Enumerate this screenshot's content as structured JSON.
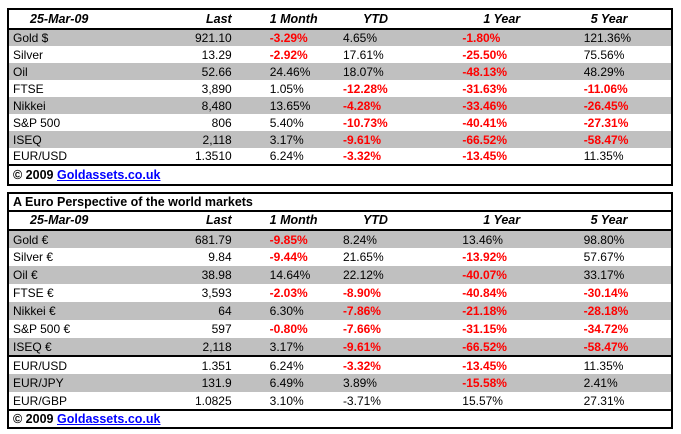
{
  "colors": {
    "negative_text": "#FF0000",
    "positive_text": "#000000",
    "shaded_row": "#C0C0C0",
    "table_border": "#000000",
    "link": "#0000FF"
  },
  "usd_table": {
    "header": [
      "25-Mar-09",
      "Last",
      "1 Month",
      "YTD",
      "1 Year",
      "5 Year"
    ],
    "rows": [
      {
        "label": "Gold $",
        "values": [
          "921.10",
          "-3.29%",
          "4.65%",
          "-1.80%",
          "121.36%"
        ],
        "negative_flags": [
          false,
          true,
          false,
          true,
          false
        ]
      },
      {
        "label": "Silver",
        "values": [
          "13.29",
          "-2.92%",
          "17.61%",
          "-25.50%",
          "75.56%"
        ],
        "negative_flags": [
          false,
          true,
          false,
          true,
          false
        ]
      },
      {
        "label": "Oil",
        "values": [
          "52.66",
          "24.46%",
          "18.07%",
          "-48.13%",
          "48.29%"
        ],
        "negative_flags": [
          false,
          false,
          false,
          true,
          false
        ]
      },
      {
        "label": "FTSE",
        "values": [
          "3,890",
          "1.05%",
          "-12.28%",
          "-31.63%",
          "-11.06%"
        ],
        "negative_flags": [
          false,
          false,
          true,
          true,
          true
        ]
      },
      {
        "label": "Nikkei",
        "values": [
          "8,480",
          "13.65%",
          "-4.28%",
          "-33.46%",
          "-26.45%"
        ],
        "negative_flags": [
          false,
          false,
          true,
          true,
          true
        ]
      },
      {
        "label": "S&P 500",
        "values": [
          "806",
          "5.40%",
          "-10.73%",
          "-40.41%",
          "-27.31%"
        ],
        "negative_flags": [
          false,
          false,
          true,
          true,
          true
        ]
      },
      {
        "label": "ISEQ",
        "values": [
          "2,118",
          "3.17%",
          "-9.61%",
          "-66.52%",
          "-58.47%"
        ],
        "negative_flags": [
          false,
          false,
          true,
          true,
          true
        ]
      },
      {
        "label": "EUR/USD",
        "values": [
          "1.3510",
          "6.24%",
          "-3.32%",
          "-13.45%",
          "11.35%"
        ],
        "negative_flags": [
          false,
          false,
          true,
          true,
          false
        ]
      }
    ],
    "footer": {
      "copyright": "© 2009",
      "link_text": "Goldassets.co.uk"
    }
  },
  "euro_table": {
    "title": "A Euro Perspective of the world markets",
    "header": [
      "25-Mar-09",
      "Last",
      "1 Month",
      "YTD",
      "1 Year",
      "5 Year"
    ],
    "rows": [
      {
        "label": "Gold €",
        "values": [
          "681.79",
          "-9.85%",
          "8.24%",
          "13.46%",
          "98.80%"
        ],
        "negative_flags": [
          false,
          true,
          false,
          false,
          false
        ]
      },
      {
        "label": "Silver €",
        "values": [
          "9.84",
          "-9.44%",
          "21.65%",
          "-13.92%",
          "57.67%"
        ],
        "negative_flags": [
          false,
          true,
          false,
          true,
          false
        ]
      },
      {
        "label": "Oil €",
        "values": [
          "38.98",
          "14.64%",
          "22.12%",
          "-40.07%",
          "33.17%"
        ],
        "negative_flags": [
          false,
          false,
          false,
          true,
          false
        ]
      },
      {
        "label": "FTSE €",
        "values": [
          "3,593",
          "-2.03%",
          "-8.90%",
          "-40.84%",
          "-30.14%"
        ],
        "negative_flags": [
          false,
          true,
          true,
          true,
          true
        ]
      },
      {
        "label": "Nikkei €",
        "values": [
          "64",
          "6.30%",
          "-7.86%",
          "-21.18%",
          "-28.18%"
        ],
        "negative_flags": [
          false,
          false,
          true,
          true,
          true
        ]
      },
      {
        "label": "S&P 500 €",
        "values": [
          "597",
          "-0.80%",
          "-7.66%",
          "-31.15%",
          "-34.72%"
        ],
        "negative_flags": [
          false,
          true,
          true,
          true,
          true
        ]
      },
      {
        "label": "ISEQ €",
        "values": [
          "2,118",
          "3.17%",
          "-9.61%",
          "-66.52%",
          "-58.47%"
        ],
        "negative_flags": [
          false,
          false,
          true,
          true,
          true
        ]
      },
      {
        "label": "EUR/USD",
        "values": [
          "1.351",
          "6.24%",
          "-3.32%",
          "-13.45%",
          "11.35%"
        ],
        "negative_flags": [
          false,
          false,
          true,
          true,
          false
        ],
        "separator_above": true
      },
      {
        "label": "EUR/JPY",
        "values": [
          "131.9",
          "6.49%",
          "3.89%",
          "-15.58%",
          "2.41%"
        ],
        "negative_flags": [
          false,
          false,
          false,
          true,
          false
        ]
      },
      {
        "label": "EUR/GBP",
        "values": [
          "1.0825",
          "3.10%",
          "-3.71%",
          "15.57%",
          "27.31%"
        ],
        "negative_flags": [
          false,
          false,
          false,
          false,
          false
        ]
      }
    ],
    "footer": {
      "copyright": "© 2009",
      "link_text": "Goldassets.co.uk"
    }
  }
}
